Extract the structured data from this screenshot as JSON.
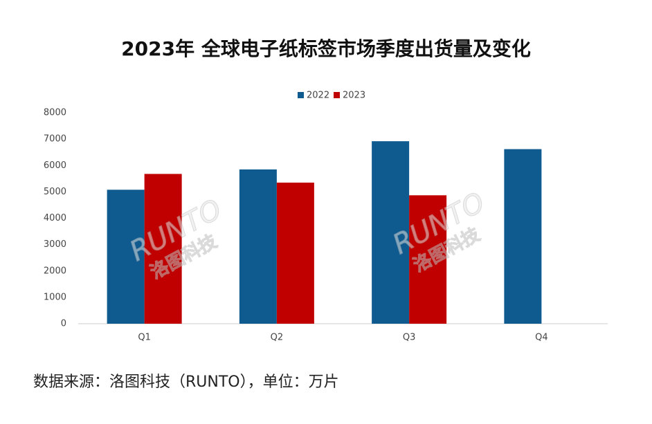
{
  "chart_data": {
    "type": "bar",
    "title": "2023年 全球电子纸标签市场季度出货量及变化",
    "categories": [
      "Q1",
      "Q2",
      "Q3",
      "Q4"
    ],
    "series": [
      {
        "name": "2022",
        "color": "#0f5a8f",
        "values": [
          5080,
          5850,
          6920,
          6620
        ]
      },
      {
        "name": "2023",
        "color": "#c00000",
        "values": [
          5680,
          5350,
          4870,
          null
        ]
      }
    ],
    "ylim": [
      0,
      8000
    ],
    "yticks": [
      0,
      1000,
      2000,
      3000,
      4000,
      5000,
      6000,
      7000,
      8000
    ],
    "grid": false,
    "legend": "top",
    "watermark": "RUNTO",
    "watermark_name": "洛图科技",
    "source": "数据来源：洛图科技（RUNTO），单位：万片"
  }
}
